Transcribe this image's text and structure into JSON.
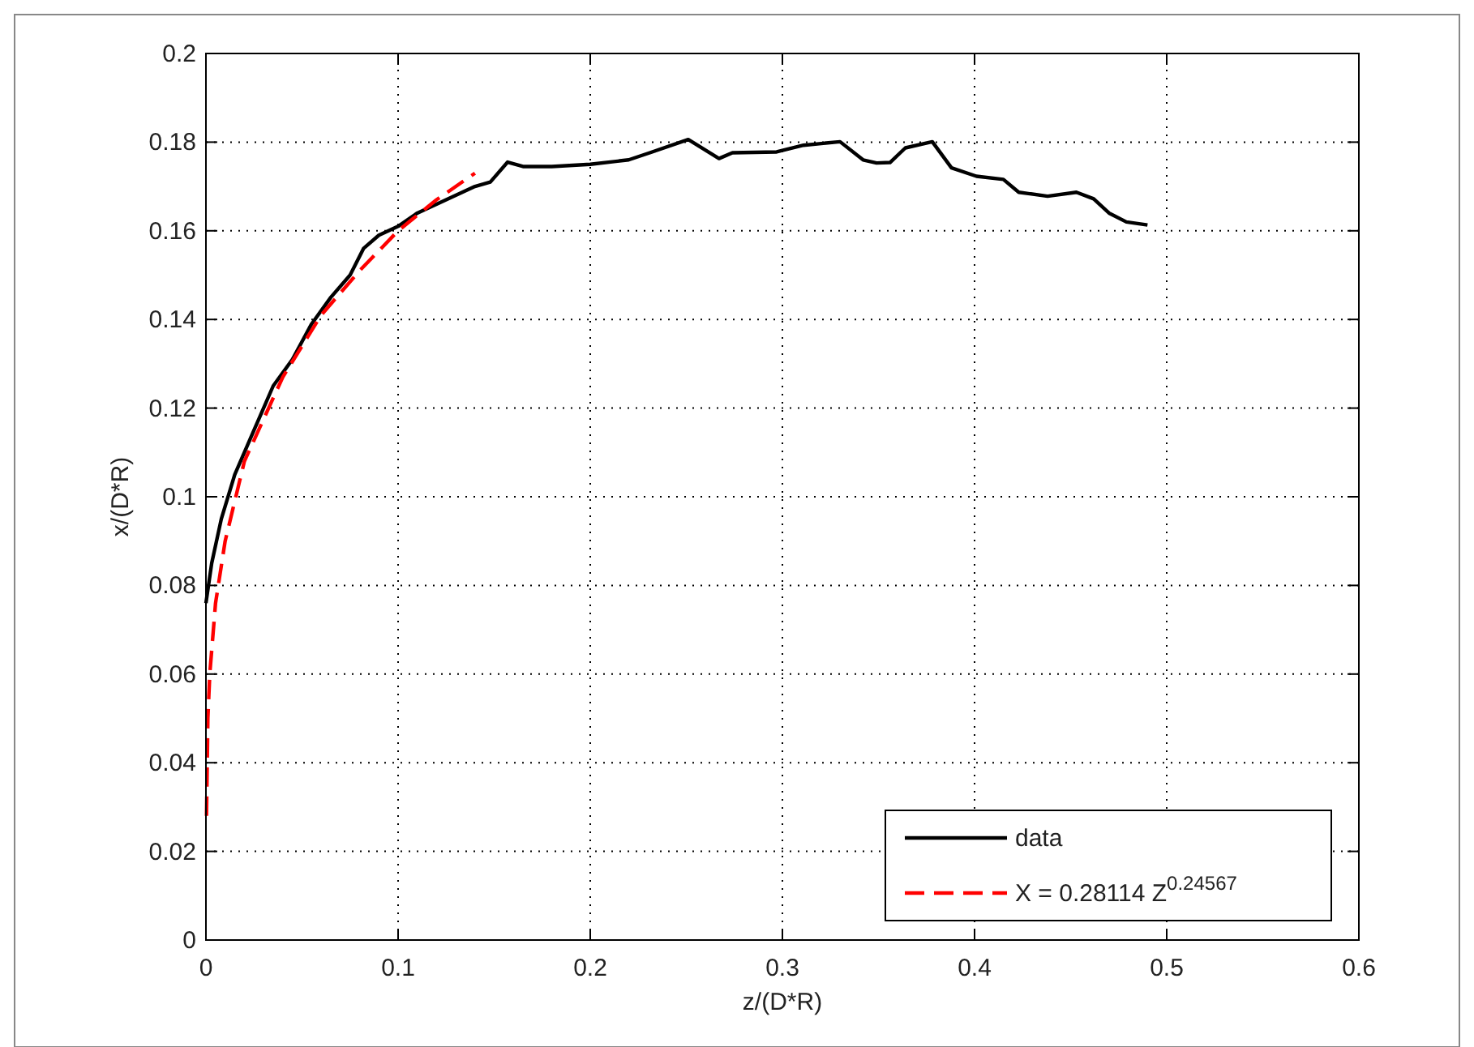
{
  "chart_data": {
    "type": "line",
    "xlabel": "z/(D*R)",
    "ylabel": "x/(D*R)",
    "xlim": [
      0,
      0.6
    ],
    "ylim": [
      0,
      0.2
    ],
    "xticks": [
      0,
      0.1,
      0.2,
      0.3,
      0.4,
      0.5,
      0.6
    ],
    "yticks": [
      0,
      0.02,
      0.04,
      0.06,
      0.08,
      0.1,
      0.12,
      0.14,
      0.16,
      0.18,
      0.2
    ],
    "grid": true,
    "legend": "bottom right",
    "series": [
      {
        "name": "data",
        "color": "#000000",
        "line_style": "solid",
        "x": [
          0,
          0.003,
          0.008,
          0.015,
          0.025,
          0.035,
          0.045,
          0.055,
          0.065,
          0.075,
          0.082,
          0.09,
          0.1,
          0.11,
          0.12,
          0.13,
          0.14,
          0.148,
          0.157,
          0.165,
          0.18,
          0.2,
          0.22,
          0.231,
          0.251,
          0.267,
          0.274,
          0.297,
          0.311,
          0.33,
          0.342,
          0.349,
          0.356,
          0.364,
          0.378,
          0.388,
          0.401,
          0.415,
          0.423,
          0.438,
          0.453,
          0.462,
          0.47,
          0.479,
          0.49
        ],
        "values": [
          0.076,
          0.085,
          0.095,
          0.105,
          0.115,
          0.125,
          0.131,
          0.139,
          0.145,
          0.15,
          0.156,
          0.159,
          0.161,
          0.164,
          0.166,
          0.168,
          0.17,
          0.171,
          0.1755,
          0.1745,
          0.1745,
          0.175,
          0.176,
          0.1776,
          0.1806,
          0.1763,
          0.1776,
          0.1778,
          0.1793,
          0.1801,
          0.176,
          0.1753,
          0.1754,
          0.1787,
          0.1801,
          0.1742,
          0.1723,
          0.1716,
          0.1687,
          0.1678,
          0.1687,
          0.1672,
          0.164,
          0.162,
          0.1613
        ]
      },
      {
        "name": "X = 0.28114 Z$^{0.24567}$",
        "color": "#ff0000",
        "line_style": "dashed",
        "x": [
          0.0003,
          0.001,
          0.002,
          0.005,
          0.01,
          0.02,
          0.04,
          0.06,
          0.08,
          0.1,
          0.12,
          0.14
        ],
        "values": [
          0.028,
          0.05,
          0.06,
          0.076,
          0.09,
          0.108,
          0.127,
          0.141,
          0.151,
          0.16,
          0.167,
          0.173
        ]
      }
    ]
  }
}
